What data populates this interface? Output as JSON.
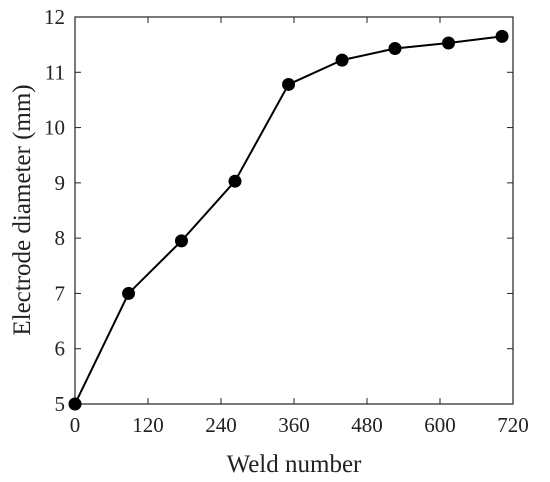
{
  "chart_data": {
    "type": "line",
    "title": "",
    "xlabel": "Weld number",
    "ylabel": "Electrode diameter (mm)",
    "xlim": [
      0,
      720
    ],
    "ylim": [
      5,
      12
    ],
    "xticks": [
      0,
      120,
      240,
      360,
      480,
      600,
      720
    ],
    "yticks": [
      5,
      6,
      7,
      8,
      9,
      10,
      11,
      12
    ],
    "grid": false,
    "legend": "none",
    "series": [
      {
        "x": [
          0,
          88,
          175,
          263,
          351,
          439,
          526,
          614,
          702
        ],
        "y": [
          5.0,
          7.0,
          7.95,
          9.03,
          10.78,
          11.22,
          11.43,
          11.53,
          11.65
        ],
        "color": "#000000",
        "marker": "circle"
      }
    ]
  }
}
